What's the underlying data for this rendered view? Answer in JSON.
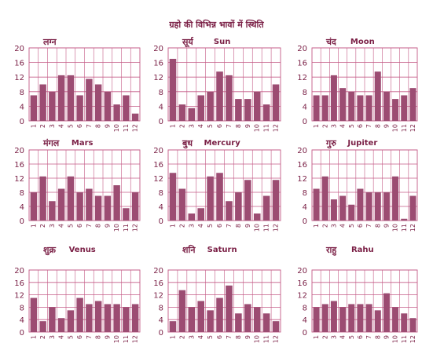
{
  "page": {
    "title": "ग्रहो की विभिन्न भावों में स्थिति"
  },
  "colors": {
    "bar": "#9c4c72",
    "grid": "#c45a86",
    "text": "#7a1f45",
    "background": "#ffffff"
  },
  "chart_data": [
    {
      "type": "bar",
      "hindi": "लग्न",
      "title": "",
      "categories": [
        "1",
        "2",
        "3",
        "4",
        "5",
        "6",
        "7",
        "8",
        "9",
        "10",
        "11",
        "12"
      ],
      "values": [
        7,
        10,
        8,
        12.5,
        12.5,
        7,
        11.5,
        10,
        8,
        4.5,
        7,
        2
      ],
      "ylim": [
        0,
        20
      ]
    },
    {
      "type": "bar",
      "hindi": "सूर्य",
      "title": "Sun",
      "categories": [
        "1",
        "2",
        "3",
        "4",
        "5",
        "6",
        "7",
        "8",
        "9",
        "10",
        "11",
        "12"
      ],
      "values": [
        17,
        4.5,
        3.5,
        7,
        8,
        13.5,
        12.5,
        6,
        6,
        8,
        4.5,
        10
      ],
      "ylim": [
        0,
        20
      ]
    },
    {
      "type": "bar",
      "hindi": "चंद",
      "title": "Moon",
      "categories": [
        "1",
        "2",
        "3",
        "4",
        "5",
        "6",
        "7",
        "8",
        "9",
        "10",
        "11",
        "12"
      ],
      "values": [
        7,
        7,
        12.5,
        9,
        8,
        7,
        7,
        13.5,
        8,
        6,
        7,
        9
      ],
      "ylim": [
        0,
        20
      ]
    },
    {
      "type": "bar",
      "hindi": "मंगल",
      "title": "Mars",
      "categories": [
        "1",
        "2",
        "3",
        "4",
        "5",
        "6",
        "7",
        "8",
        "9",
        "10",
        "11",
        "12"
      ],
      "values": [
        8,
        12.5,
        5.5,
        9,
        12.5,
        8,
        9,
        7,
        7,
        10,
        3.5,
        8
      ],
      "ylim": [
        0,
        20
      ]
    },
    {
      "type": "bar",
      "hindi": "बुध",
      "title": "Mercury",
      "categories": [
        "1",
        "2",
        "3",
        "4",
        "5",
        "6",
        "7",
        "8",
        "9",
        "10",
        "11",
        "12"
      ],
      "values": [
        13.5,
        9,
        2,
        3.5,
        12.5,
        13.5,
        5.5,
        8,
        11.5,
        2,
        7,
        11.5
      ],
      "ylim": [
        0,
        20
      ]
    },
    {
      "type": "bar",
      "hindi": "गुरु",
      "title": "Jupiter",
      "categories": [
        "1",
        "2",
        "3",
        "4",
        "5",
        "6",
        "7",
        "8",
        "9",
        "10",
        "11",
        "12"
      ],
      "values": [
        9,
        12.5,
        6,
        7,
        4.5,
        9,
        8,
        8,
        8,
        12.5,
        0.5,
        7
      ],
      "ylim": [
        0,
        20
      ]
    },
    {
      "type": "bar",
      "hindi": "शुक्र",
      "title": "Venus",
      "categories": [
        "1",
        "2",
        "3",
        "4",
        "5",
        "6",
        "7",
        "8",
        "9",
        "10",
        "11",
        "12"
      ],
      "values": [
        11,
        3.5,
        8,
        4.5,
        7,
        11,
        9,
        10,
        9,
        9,
        8,
        9
      ],
      "ylim": [
        0,
        20
      ]
    },
    {
      "type": "bar",
      "hindi": "शनि",
      "title": "Saturn",
      "categories": [
        "1",
        "2",
        "3",
        "4",
        "5",
        "6",
        "7",
        "8",
        "9",
        "10",
        "11",
        "12"
      ],
      "values": [
        3.5,
        13.5,
        8,
        10,
        7,
        11,
        15,
        6,
        9,
        8,
        6,
        3.5
      ],
      "ylim": [
        0,
        20
      ]
    },
    {
      "type": "bar",
      "hindi": "राहु",
      "title": "Rahu",
      "categories": [
        "1",
        "2",
        "3",
        "4",
        "5",
        "6",
        "7",
        "8",
        "9",
        "10",
        "11",
        "12"
      ],
      "values": [
        8,
        9,
        10,
        8,
        9,
        9,
        9,
        7,
        12.5,
        8,
        6,
        4.5
      ],
      "ylim": [
        0,
        20
      ]
    }
  ]
}
